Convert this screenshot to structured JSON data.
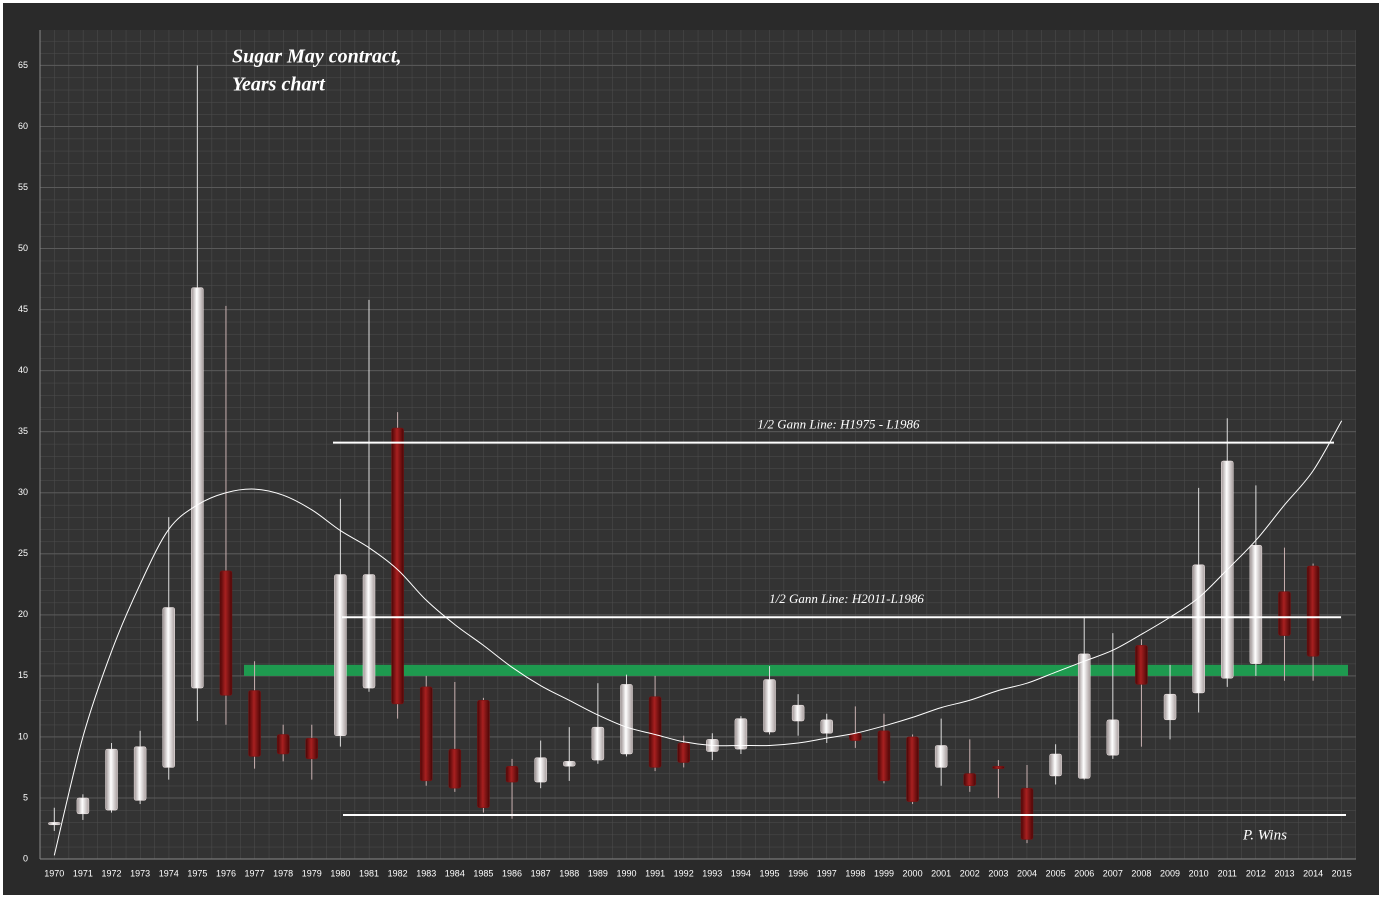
{
  "chart_data": {
    "type": "candlestick",
    "title": "Sugar May contract,",
    "subtitle": "Years chart",
    "annotation": "P. Wins",
    "categories": [
      "1970",
      "1971",
      "1972",
      "1973",
      "1974",
      "1975",
      "1976",
      "1977",
      "1978",
      "1979",
      "1980",
      "1981",
      "1982",
      "1983",
      "1984",
      "1985",
      "1986",
      "1987",
      "1988",
      "1989",
      "1990",
      "1991",
      "1992",
      "1993",
      "1994",
      "1995",
      "1996",
      "1997",
      "1998",
      "1999",
      "2000",
      "2001",
      "2002",
      "2003",
      "2004",
      "2005",
      "2006",
      "2007",
      "2008",
      "2009",
      "2010",
      "2011",
      "2012",
      "2013",
      "2014",
      "2015"
    ],
    "open": [
      2.8,
      3.7,
      4.0,
      4.8,
      7.5,
      14,
      23.6,
      13.8,
      10.2,
      9.9,
      10.1,
      14,
      35.3,
      14.1,
      9,
      13,
      7.6,
      6.3,
      7.6,
      8.1,
      8.6,
      13.3,
      9.5,
      8.8,
      9.0,
      10.4,
      11.3,
      10.3,
      10.3,
      10.5,
      10,
      7.5,
      7,
      7.6,
      5.8,
      6.8,
      6.6,
      8.5,
      17.5,
      11.4,
      13.6,
      14.8,
      16,
      21.9,
      24,
      null
    ],
    "high": [
      4.2,
      5.3,
      9.5,
      10.5,
      28,
      65,
      45.3,
      16.2,
      11,
      11,
      29.5,
      45.8,
      36.6,
      15,
      14.5,
      13.2,
      8.2,
      9.7,
      10.8,
      14.4,
      15.1,
      15,
      10.1,
      10.3,
      11.7,
      15.8,
      13.5,
      11.9,
      12.5,
      11.9,
      10.2,
      11.5,
      9.8,
      8.1,
      7.7,
      9.4,
      19.8,
      18.5,
      18,
      15.9,
      30.4,
      36.1,
      30.6,
      25.5,
      24.2,
      null
    ],
    "low": [
      2.3,
      3.2,
      3.8,
      4.5,
      6.5,
      11.3,
      11,
      7.4,
      8,
      6.5,
      9.2,
      13.7,
      11.5,
      6,
      5.5,
      3.8,
      3.3,
      5.8,
      6.4,
      7.8,
      8.4,
      7.2,
      7.5,
      8.1,
      8.6,
      10.2,
      10.1,
      9.5,
      9.1,
      6.2,
      4.5,
      6,
      5.5,
      5,
      1.3,
      6.1,
      6.5,
      8.2,
      9.2,
      9.8,
      12,
      14.1,
      15,
      14.6,
      14.6,
      null
    ],
    "close": [
      3.0,
      5.0,
      9.0,
      9.2,
      20.6,
      46.8,
      13.4,
      8.4,
      8.6,
      8.2,
      23.3,
      23.3,
      12.7,
      6.4,
      5.8,
      4.2,
      6.3,
      8.3,
      8.0,
      10.8,
      14.3,
      7.5,
      7.9,
      9.8,
      11.5,
      14.7,
      12.6,
      11.4,
      9.7,
      6.4,
      4.7,
      9.3,
      6,
      7.4,
      1.6,
      8.6,
      16.8,
      11.4,
      14.3,
      13.5,
      24.1,
      32.6,
      25.7,
      18.3,
      16.6,
      null
    ],
    "up_color": "#f2e8e8",
    "down_color": "#7a1414",
    "trend": [
      0.3,
      10,
      17,
      22.5,
      27,
      29,
      30,
      30.3,
      29.8,
      28.6,
      26.9,
      25.5,
      23.7,
      21.2,
      19.2,
      17.5,
      15.7,
      14.2,
      13,
      11.8,
      10.8,
      10.2,
      9.6,
      9.3,
      9.3,
      9.3,
      9.5,
      9.9,
      10.3,
      10.9,
      11.6,
      12.4,
      13,
      13.8,
      14.4,
      15.3,
      16.2,
      17.1,
      18.4,
      19.8,
      21.4,
      23.7,
      26.1,
      29,
      31.8,
      35.9
    ],
    "hlines": [
      {
        "label": "1/2 Gann Line: H1975  - L1986",
        "value": 34.1
      },
      {
        "label": "1/2 Gann Line: H2011-L1986",
        "value": 19.8
      },
      {
        "value": 3.6
      }
    ],
    "band": {
      "from": 15.0,
      "to": 15.9,
      "color": "#1e9a4f"
    },
    "ylim": [
      0,
      67.9
    ],
    "yticks": [
      0,
      5,
      10,
      15,
      20,
      25,
      30,
      35,
      40,
      45,
      50,
      55,
      60,
      65
    ],
    "grid": true
  }
}
